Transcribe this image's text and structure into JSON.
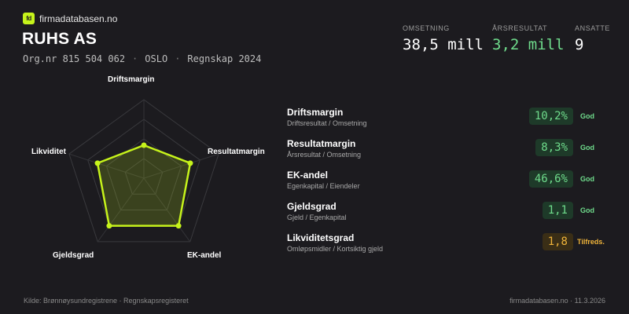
{
  "brand": {
    "logo_text": "fd",
    "name": "firmadatabasen.no",
    "accent": "#c6f31b"
  },
  "company": {
    "name": "RUHS AS",
    "org": "Org.nr 815 504 062",
    "city": "OSLO",
    "report": "Regnskap 2024",
    "separator": "·"
  },
  "metrics": {
    "omsetning": {
      "label": "OMSETNING",
      "value": "38,5 mill"
    },
    "resultat": {
      "label": "ÅRSRESULTAT",
      "value": "3,2 mill",
      "color": "#6fdc8c"
    },
    "ansatte": {
      "label": "ANSATTE",
      "value": "9"
    }
  },
  "radar": {
    "labels": [
      "Driftsmargin",
      "Resultatmargin",
      "EK-andel",
      "Gjeldsgrad",
      "Likviditet"
    ],
    "scores": [
      0.42,
      0.62,
      0.75,
      0.75,
      0.62
    ],
    "line_color": "#c6f31b"
  },
  "kpis": [
    {
      "title": "Driftsmargin",
      "sub": "Driftsresultat / Omsetning",
      "value": "10,2%",
      "status": "God",
      "level": "good"
    },
    {
      "title": "Resultatmargin",
      "sub": "Årsresultat / Omsetning",
      "value": "8,3%",
      "status": "God",
      "level": "good"
    },
    {
      "title": "EK-andel",
      "sub": "Egenkapital / Eiendeler",
      "value": "46,6%",
      "status": "God",
      "level": "good"
    },
    {
      "title": "Gjeldsgrad",
      "sub": "Gjeld / Egenkapital",
      "value": "1,1",
      "status": "God",
      "level": "good"
    },
    {
      "title": "Likviditetsgrad",
      "sub": "Omløpsmidler / Kortsiktig gjeld",
      "value": "1,8",
      "status": "Tilfreds.",
      "level": "warn"
    }
  ],
  "footer": {
    "source": "Kilde: Brønnøysundregistrene · Regnskapsregisteret",
    "site_date": "firmadatabasen.no · 11.3.2026"
  }
}
